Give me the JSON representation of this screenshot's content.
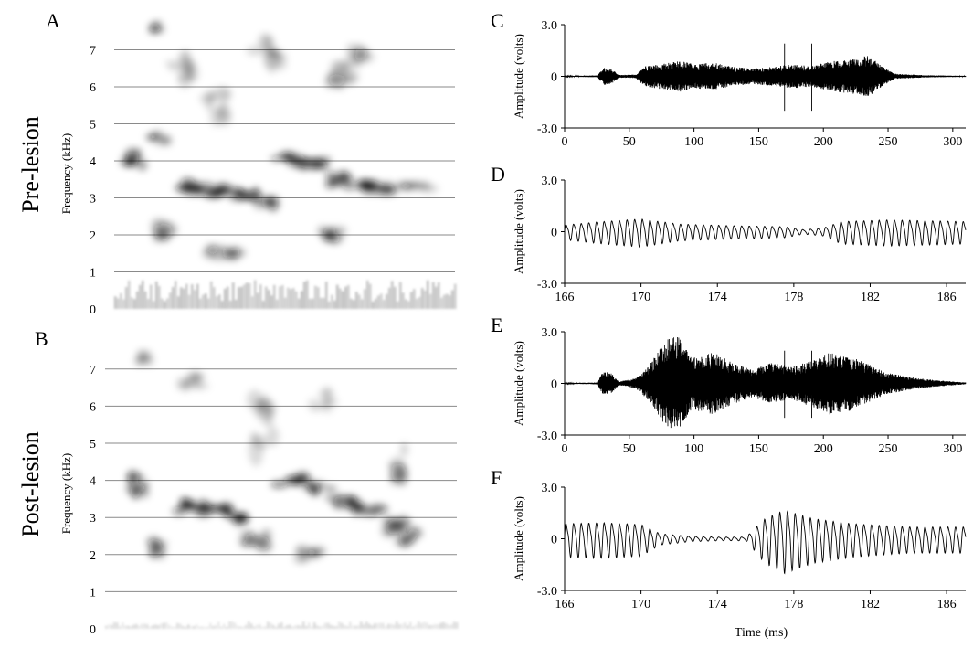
{
  "figure": {
    "row_labels": [
      "Pre-lesion",
      "Post-lesion"
    ],
    "shared_xlabel": "Time (ms)"
  },
  "colors": {
    "ink": "#000000",
    "grid": "#8a8a8a",
    "spectro_dark": "#111111"
  },
  "chart_data": [
    {
      "panel": "A",
      "type": "heatmap",
      "ylabel": "Frequency (kHz)",
      "yticks": [
        0,
        1,
        2,
        3,
        4,
        5,
        6,
        7
      ],
      "ylim": [
        0,
        7.8
      ],
      "grid": true,
      "blobs": [
        {
          "t": 0.06,
          "f": 4.05,
          "w": 0.03,
          "h": 0.3,
          "i": 0.85
        },
        {
          "t": 0.14,
          "f": 4.6,
          "w": 0.04,
          "h": 0.2,
          "i": 0.4
        },
        {
          "t": 0.23,
          "f": 3.3,
          "w": 0.05,
          "h": 0.22,
          "i": 0.95
        },
        {
          "t": 0.31,
          "f": 3.2,
          "w": 0.05,
          "h": 0.2,
          "i": 0.9
        },
        {
          "t": 0.39,
          "f": 3.15,
          "w": 0.04,
          "h": 0.22,
          "i": 0.85
        },
        {
          "t": 0.45,
          "f": 2.8,
          "w": 0.03,
          "h": 0.3,
          "i": 0.6
        },
        {
          "t": 0.51,
          "f": 4.05,
          "w": 0.04,
          "h": 0.2,
          "i": 0.8
        },
        {
          "t": 0.58,
          "f": 3.9,
          "w": 0.05,
          "h": 0.2,
          "i": 0.85
        },
        {
          "t": 0.66,
          "f": 3.5,
          "w": 0.04,
          "h": 0.22,
          "i": 0.8
        },
        {
          "t": 0.73,
          "f": 3.3,
          "w": 0.05,
          "h": 0.2,
          "i": 0.95
        },
        {
          "t": 0.81,
          "f": 3.25,
          "w": 0.05,
          "h": 0.18,
          "i": 0.6
        },
        {
          "t": 0.89,
          "f": 3.3,
          "w": 0.05,
          "h": 0.15,
          "i": 0.3
        },
        {
          "t": 0.15,
          "f": 2.1,
          "w": 0.03,
          "h": 0.3,
          "i": 0.5
        },
        {
          "t": 0.32,
          "f": 1.5,
          "w": 0.05,
          "h": 0.22,
          "i": 0.55
        },
        {
          "t": 0.63,
          "f": 2.0,
          "w": 0.04,
          "h": 0.22,
          "i": 0.6
        },
        {
          "t": 0.2,
          "f": 6.5,
          "w": 0.04,
          "h": 0.6,
          "i": 0.3
        },
        {
          "t": 0.3,
          "f": 5.5,
          "w": 0.04,
          "h": 0.6,
          "i": 0.3
        },
        {
          "t": 0.45,
          "f": 6.8,
          "w": 0.05,
          "h": 0.8,
          "i": 0.3
        },
        {
          "t": 0.66,
          "f": 6.3,
          "w": 0.05,
          "h": 0.6,
          "i": 0.35
        },
        {
          "t": 0.72,
          "f": 6.8,
          "w": 0.04,
          "h": 0.4,
          "i": 0.35
        },
        {
          "t": 0.12,
          "f": 7.6,
          "w": 0.02,
          "h": 0.15,
          "i": 0.4
        }
      ]
    },
    {
      "panel": "B",
      "type": "heatmap",
      "ylabel": "Frequency (kHz)",
      "yticks": [
        0,
        1,
        2,
        3,
        4,
        5,
        6,
        7
      ],
      "ylim": [
        0,
        7.5
      ],
      "grid": true,
      "blobs": [
        {
          "t": 0.09,
          "f": 3.9,
          "w": 0.03,
          "h": 0.4,
          "i": 0.7
        },
        {
          "t": 0.14,
          "f": 2.2,
          "w": 0.03,
          "h": 0.3,
          "i": 0.55
        },
        {
          "t": 0.24,
          "f": 3.3,
          "w": 0.05,
          "h": 0.22,
          "i": 0.9
        },
        {
          "t": 0.31,
          "f": 3.2,
          "w": 0.05,
          "h": 0.22,
          "i": 0.85
        },
        {
          "t": 0.38,
          "f": 3.0,
          "w": 0.04,
          "h": 0.25,
          "i": 0.8
        },
        {
          "t": 0.43,
          "f": 2.4,
          "w": 0.04,
          "h": 0.3,
          "i": 0.55
        },
        {
          "t": 0.53,
          "f": 4.0,
          "w": 0.05,
          "h": 0.2,
          "i": 0.75
        },
        {
          "t": 0.61,
          "f": 3.8,
          "w": 0.05,
          "h": 0.2,
          "i": 0.7
        },
        {
          "t": 0.68,
          "f": 3.4,
          "w": 0.05,
          "h": 0.22,
          "i": 0.85
        },
        {
          "t": 0.74,
          "f": 3.2,
          "w": 0.05,
          "h": 0.22,
          "i": 0.75
        },
        {
          "t": 0.82,
          "f": 2.8,
          "w": 0.04,
          "h": 0.3,
          "i": 0.65
        },
        {
          "t": 0.86,
          "f": 2.5,
          "w": 0.04,
          "h": 0.3,
          "i": 0.5
        },
        {
          "t": 0.58,
          "f": 2.0,
          "w": 0.04,
          "h": 0.22,
          "i": 0.45
        },
        {
          "t": 0.25,
          "f": 6.7,
          "w": 0.04,
          "h": 0.3,
          "i": 0.3
        },
        {
          "t": 0.45,
          "f": 5.5,
          "w": 0.04,
          "h": 1.2,
          "i": 0.3
        },
        {
          "t": 0.62,
          "f": 6.2,
          "w": 0.04,
          "h": 0.4,
          "i": 0.25
        },
        {
          "t": 0.83,
          "f": 4.5,
          "w": 0.03,
          "h": 0.8,
          "i": 0.35
        },
        {
          "t": 0.11,
          "f": 7.3,
          "w": 0.02,
          "h": 0.2,
          "i": 0.3
        }
      ]
    },
    {
      "panel": "C",
      "type": "line",
      "ylabel": "Amplitude (volts)",
      "xlim": [
        0,
        310
      ],
      "ylim": [
        -3.0,
        3.0
      ],
      "xticks": [
        0,
        50,
        100,
        150,
        200,
        250,
        300
      ],
      "yticks": [
        "3.0",
        "0",
        "-3.0"
      ],
      "markers": [
        170,
        191
      ],
      "envelope": [
        {
          "x": 0,
          "a": 0.02
        },
        {
          "x": 25,
          "a": 0.05
        },
        {
          "x": 30,
          "a": 0.5
        },
        {
          "x": 36,
          "a": 0.45
        },
        {
          "x": 42,
          "a": 0.08
        },
        {
          "x": 55,
          "a": 0.1
        },
        {
          "x": 62,
          "a": 0.6
        },
        {
          "x": 80,
          "a": 0.8
        },
        {
          "x": 90,
          "a": 0.9
        },
        {
          "x": 100,
          "a": 0.7
        },
        {
          "x": 115,
          "a": 0.8
        },
        {
          "x": 130,
          "a": 0.55
        },
        {
          "x": 145,
          "a": 0.45
        },
        {
          "x": 160,
          "a": 0.55
        },
        {
          "x": 175,
          "a": 0.7
        },
        {
          "x": 190,
          "a": 0.6
        },
        {
          "x": 205,
          "a": 0.85
        },
        {
          "x": 220,
          "a": 1.0
        },
        {
          "x": 235,
          "a": 1.2
        },
        {
          "x": 245,
          "a": 0.6
        },
        {
          "x": 255,
          "a": 0.15
        },
        {
          "x": 280,
          "a": 0.06
        },
        {
          "x": 310,
          "a": 0.03
        }
      ]
    },
    {
      "panel": "D",
      "type": "line",
      "ylabel": "Amplitude (volts)",
      "xlim": [
        166,
        187
      ],
      "ylim": [
        -3.0,
        3.0
      ],
      "xticks": [
        166,
        170,
        174,
        178,
        182,
        186
      ],
      "yticks": [
        "3.0",
        "0",
        "-3.0"
      ],
      "period": 0.4,
      "envelope": [
        {
          "x": 166,
          "a": 0.4
        },
        {
          "x": 168,
          "a": 0.6
        },
        {
          "x": 170,
          "a": 0.75
        },
        {
          "x": 172,
          "a": 0.45
        },
        {
          "x": 175,
          "a": 0.35
        },
        {
          "x": 177.5,
          "a": 0.3
        },
        {
          "x": 178.5,
          "a": 0.12
        },
        {
          "x": 179.5,
          "a": 0.2
        },
        {
          "x": 180.5,
          "a": 0.6
        },
        {
          "x": 183,
          "a": 0.7
        },
        {
          "x": 185,
          "a": 0.65
        },
        {
          "x": 187,
          "a": 0.6
        }
      ]
    },
    {
      "panel": "E",
      "type": "line",
      "ylabel": "Amplitude (volts)",
      "xlim": [
        0,
        310
      ],
      "ylim": [
        -3.0,
        3.0
      ],
      "xticks": [
        0,
        50,
        100,
        150,
        200,
        250,
        300
      ],
      "yticks": [
        "3.0",
        "0",
        "-3.0"
      ],
      "markers": [
        170,
        191
      ],
      "envelope": [
        {
          "x": 0,
          "a": 0.02
        },
        {
          "x": 25,
          "a": 0.05
        },
        {
          "x": 30,
          "a": 0.7
        },
        {
          "x": 36,
          "a": 0.6
        },
        {
          "x": 42,
          "a": 0.1
        },
        {
          "x": 55,
          "a": 0.3
        },
        {
          "x": 65,
          "a": 1.0
        },
        {
          "x": 78,
          "a": 2.5
        },
        {
          "x": 88,
          "a": 2.8
        },
        {
          "x": 98,
          "a": 1.5
        },
        {
          "x": 115,
          "a": 1.8
        },
        {
          "x": 130,
          "a": 1.2
        },
        {
          "x": 145,
          "a": 0.8
        },
        {
          "x": 160,
          "a": 1.2
        },
        {
          "x": 175,
          "a": 1.0
        },
        {
          "x": 190,
          "a": 1.3
        },
        {
          "x": 205,
          "a": 1.8
        },
        {
          "x": 220,
          "a": 1.6
        },
        {
          "x": 235,
          "a": 1.1
        },
        {
          "x": 250,
          "a": 0.6
        },
        {
          "x": 265,
          "a": 0.4
        },
        {
          "x": 285,
          "a": 0.2
        },
        {
          "x": 310,
          "a": 0.05
        }
      ]
    },
    {
      "panel": "F",
      "type": "line",
      "ylabel": "Amplitude (volts)",
      "xlim": [
        166,
        187
      ],
      "ylim": [
        -3.0,
        3.0
      ],
      "xticks": [
        166,
        170,
        174,
        178,
        182,
        186
      ],
      "yticks": [
        "3.0",
        "0",
        "-3.0"
      ],
      "period": 0.4,
      "envelope": [
        {
          "x": 166,
          "a": 0.9
        },
        {
          "x": 168,
          "a": 0.95
        },
        {
          "x": 170,
          "a": 0.85
        },
        {
          "x": 171,
          "a": 0.3
        },
        {
          "x": 172.5,
          "a": 0.15
        },
        {
          "x": 174,
          "a": 0.1
        },
        {
          "x": 175.5,
          "a": 0.1
        },
        {
          "x": 176.5,
          "a": 1.2
        },
        {
          "x": 177.5,
          "a": 1.7
        },
        {
          "x": 179,
          "a": 1.2
        },
        {
          "x": 181,
          "a": 0.9
        },
        {
          "x": 184,
          "a": 0.7
        },
        {
          "x": 187,
          "a": 0.7
        }
      ]
    }
  ]
}
